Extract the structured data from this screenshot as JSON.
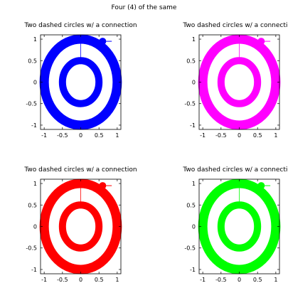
{
  "figure": {
    "suptitle": "Four (4) of the same"
  },
  "chart_data": [
    {
      "type": "line",
      "title": "Two dashed circles w/ a connection",
      "xlim": [
        -1.1,
        1.1
      ],
      "ylim": [
        -1.1,
        1.1
      ],
      "x_ticks": [
        "-1",
        "-0.5",
        "0",
        "0.5",
        "1"
      ],
      "y_ticks": [
        "-1",
        "-0.5",
        "0",
        "0.5",
        "1"
      ],
      "grid": false,
      "color": "#0000ff",
      "series": [
        {
          "shape": "circle",
          "cx": 0,
          "cy": 0,
          "r": 1.0
        },
        {
          "shape": "circle",
          "cx": 0,
          "cy": 0,
          "r": 0.5
        }
      ],
      "connection": {
        "from": [
          0,
          0.5
        ],
        "to": [
          0,
          1.0
        ]
      },
      "marker": {
        "x": 0.6,
        "y": 0.95,
        "tail_to_x": 0.85
      }
    },
    {
      "type": "line",
      "title": "Two dashed circles w/ a connection",
      "xlim": [
        -1.1,
        1.1
      ],
      "ylim": [
        -1.1,
        1.1
      ],
      "x_ticks": [
        "-1",
        "-0.5",
        "0",
        "0.5",
        "1"
      ],
      "y_ticks": [
        "-1",
        "-0.5",
        "0",
        "0.5",
        "1"
      ],
      "grid": false,
      "color": "#ff00ff",
      "series": [
        {
          "shape": "circle",
          "cx": 0,
          "cy": 0,
          "r": 1.0
        },
        {
          "shape": "circle",
          "cx": 0,
          "cy": 0,
          "r": 0.5
        }
      ],
      "connection": {
        "from": [
          0,
          0.5
        ],
        "to": [
          0,
          1.0
        ]
      },
      "marker": {
        "x": 0.6,
        "y": 0.95,
        "tail_to_x": 0.85
      }
    },
    {
      "type": "line",
      "title": "Two dashed circles w/ a connection",
      "xlim": [
        -1.1,
        1.1
      ],
      "ylim": [
        -1.1,
        1.1
      ],
      "x_ticks": [
        "-1",
        "-0.5",
        "0",
        "0.5",
        "1"
      ],
      "y_ticks": [
        "-1",
        "-0.5",
        "0",
        "0.5",
        "1"
      ],
      "grid": false,
      "color": "#ff0000",
      "series": [
        {
          "shape": "circle",
          "cx": 0,
          "cy": 0,
          "r": 1.0
        },
        {
          "shape": "circle",
          "cx": 0,
          "cy": 0,
          "r": 0.5
        }
      ],
      "connection": {
        "from": [
          0,
          0.5
        ],
        "to": [
          0,
          1.0
        ]
      },
      "marker": {
        "x": 0.6,
        "y": 0.95,
        "tail_to_x": 0.85
      }
    },
    {
      "type": "line",
      "title": "Two dashed circles w/ a connection",
      "xlim": [
        -1.1,
        1.1
      ],
      "ylim": [
        -1.1,
        1.1
      ],
      "x_ticks": [
        "-1",
        "-0.5",
        "0",
        "0.5",
        "1"
      ],
      "y_ticks": [
        "-1",
        "-0.5",
        "0",
        "0.5",
        "1"
      ],
      "grid": false,
      "color": "#00ff00",
      "series": [
        {
          "shape": "circle",
          "cx": 0,
          "cy": 0,
          "r": 1.0
        },
        {
          "shape": "circle",
          "cx": 0,
          "cy": 0,
          "r": 0.5
        }
      ],
      "connection": {
        "from": [
          0,
          0.5
        ],
        "to": [
          0,
          1.0
        ]
      },
      "marker": {
        "x": 0.6,
        "y": 0.95,
        "tail_to_x": 0.85
      }
    }
  ]
}
